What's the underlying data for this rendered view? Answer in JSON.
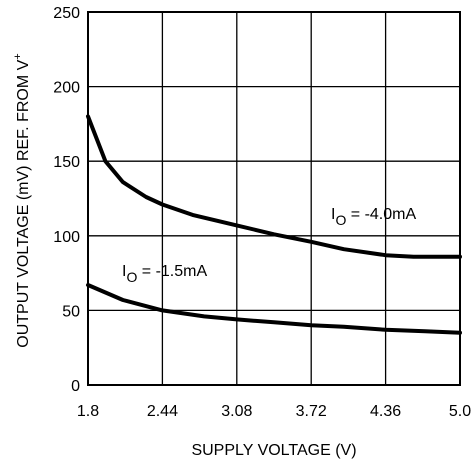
{
  "chart_data": {
    "type": "line",
    "title": "",
    "xlabel": "SUPPLY VOLTAGE (V)",
    "ylabel": "OUTPUT VOLTAGE (mV) REF. FROM V",
    "ylabel_superscript": "+",
    "xlim": [
      1.8,
      5.0
    ],
    "ylim": [
      0,
      250
    ],
    "x_ticks": [
      1.8,
      2.44,
      3.08,
      3.72,
      4.36,
      5.0
    ],
    "x_tick_labels": [
      "1.8",
      "2.44",
      "3.08",
      "3.72",
      "4.36",
      "5.0"
    ],
    "y_ticks": [
      0,
      50,
      100,
      150,
      200,
      250
    ],
    "y_tick_labels": [
      "0",
      "50",
      "100",
      "150",
      "200",
      "250"
    ],
    "grid": true,
    "legend": "none",
    "series": [
      {
        "label_main": "I",
        "label_sub": "O",
        "label_rest": " = -4.0mA",
        "x": [
          1.8,
          1.95,
          2.1,
          2.3,
          2.44,
          2.7,
          3.08,
          3.4,
          3.72,
          4.0,
          4.36,
          4.6,
          5.0
        ],
        "y": [
          180,
          150,
          136,
          126,
          121,
          114,
          107,
          101,
          96,
          91,
          87,
          86,
          86
        ]
      },
      {
        "label_main": "I",
        "label_sub": "O",
        "label_rest": " = -1.5mA",
        "x": [
          1.8,
          2.1,
          2.44,
          2.8,
          3.08,
          3.4,
          3.72,
          4.0,
          4.36,
          4.7,
          5.0
        ],
        "y": [
          67,
          57,
          50,
          46,
          44,
          42,
          40,
          39,
          37,
          36,
          35
        ]
      }
    ]
  }
}
